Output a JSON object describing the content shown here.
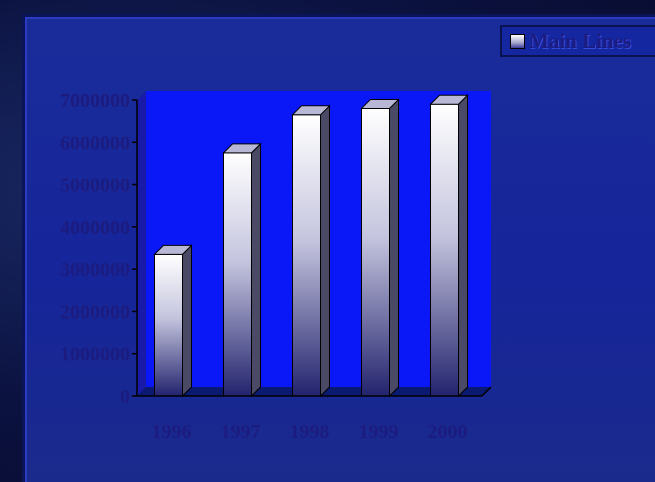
{
  "legend": {
    "label": "Main Lines"
  },
  "chart_data": {
    "type": "bar",
    "categories": [
      "1996",
      "1997",
      "1998",
      "1999",
      "2000"
    ],
    "series": [
      {
        "name": "Main Lines",
        "values": [
          3350000,
          5750000,
          6650000,
          6800000,
          6900000
        ]
      }
    ],
    "yticks": [
      "0",
      "1000000",
      "2000000",
      "3000000",
      "4000000",
      "5000000",
      "6000000",
      "7000000"
    ],
    "ylim": [
      0,
      7000000
    ],
    "legend_position": "top-right",
    "grid": false,
    "colors": {
      "plot_area": "#0a18f8",
      "bar_top": "#ffffff",
      "bar_bottom": "#23236e",
      "text": "#1c1c80"
    }
  }
}
